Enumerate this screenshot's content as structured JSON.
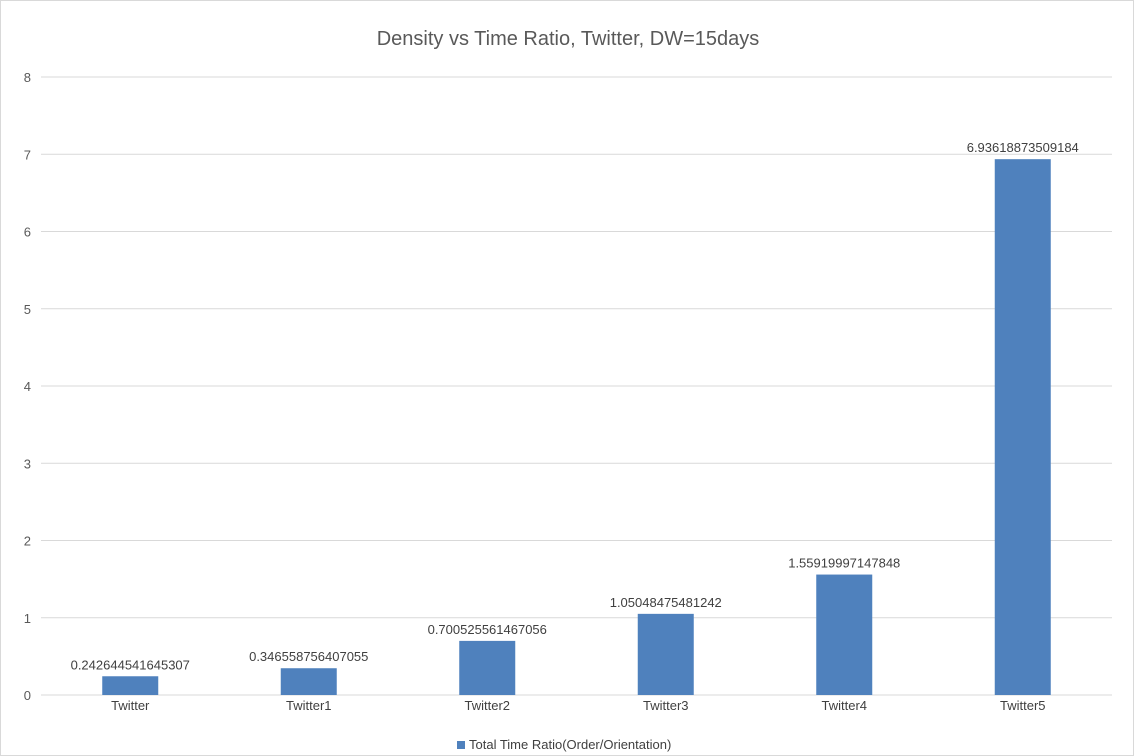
{
  "chart_data": {
    "type": "bar",
    "title": "Density vs Time Ratio, Twitter, DW=15days",
    "xlabel": "",
    "ylabel": "",
    "categories": [
      "Twitter",
      "Twitter1",
      "Twitter2",
      "Twitter3",
      "Twitter4",
      "Twitter5"
    ],
    "series": [
      {
        "name": "Total Time Ratio(Order/Orientation)",
        "values": [
          0.242644541645307,
          0.346558756407055,
          0.700525561467056,
          1.05048475481242,
          1.55919997147848,
          6.93618873509184
        ],
        "data_labels": [
          "0.242644541645307",
          "0.346558756407055",
          "0.700525561467056",
          "1.05048475481242",
          "1.55919997147848",
          "6.93618873509184"
        ]
      }
    ],
    "ylim": [
      0,
      8
    ],
    "yticks": [
      "0",
      "1",
      "2",
      "3",
      "4",
      "5",
      "6",
      "7",
      "8"
    ],
    "grid": true,
    "legend_position": "bottom",
    "colors": {
      "bar": "#4f81bd",
      "grid": "#d9d9d9"
    }
  }
}
